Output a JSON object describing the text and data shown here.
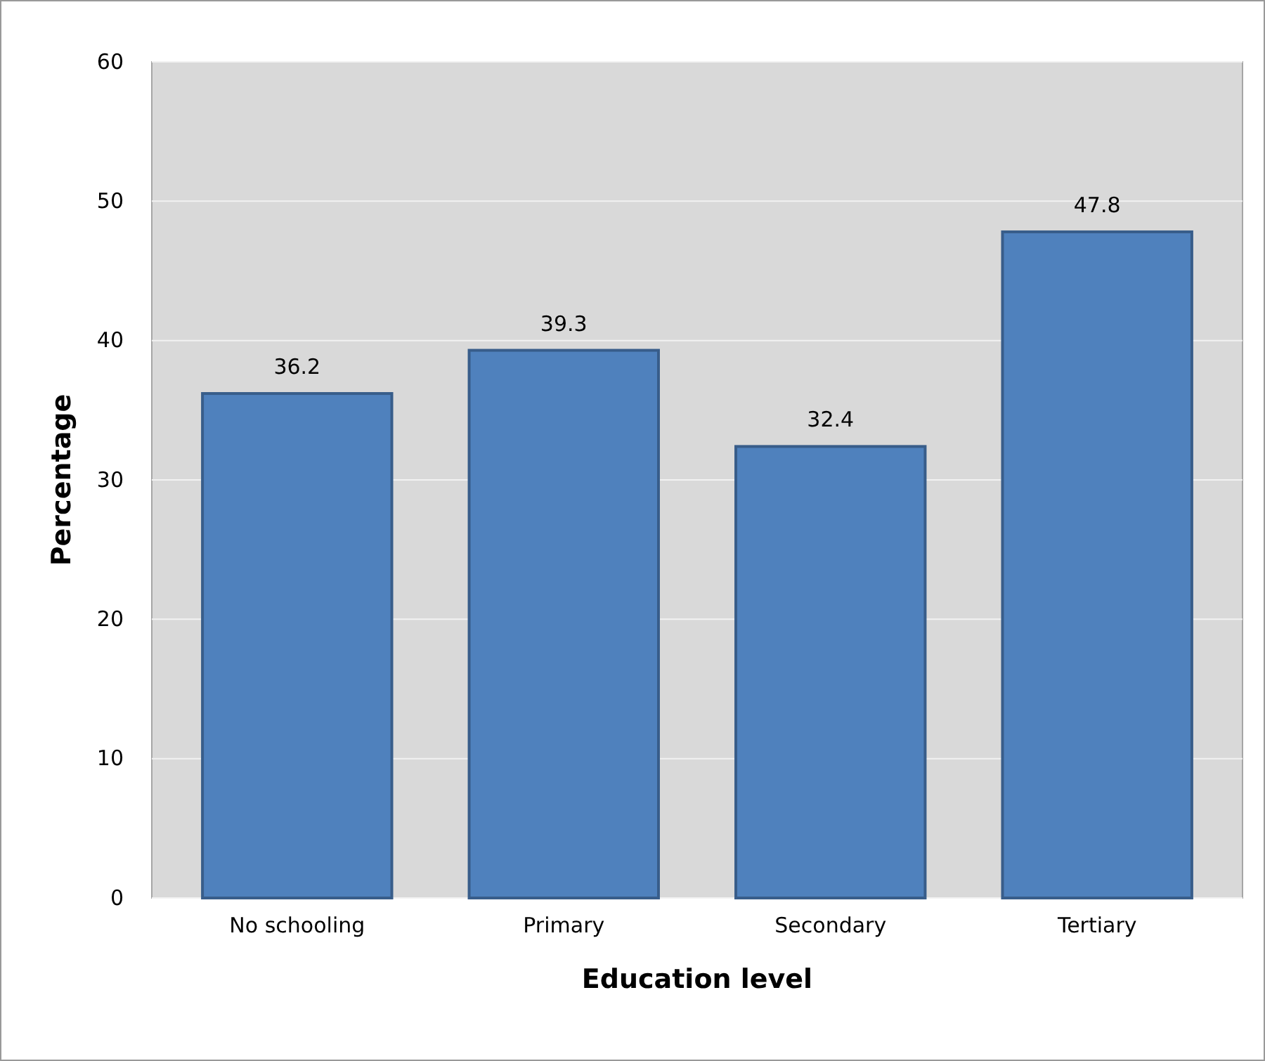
{
  "chart_data": {
    "type": "bar",
    "xlabel": "Education level",
    "ylabel": "Percentage",
    "categories": [
      "No schooling",
      "Primary",
      "Secondary",
      "Tertiary"
    ],
    "values": [
      36.2,
      39.3,
      32.4,
      47.8
    ],
    "color": "#4f81bd",
    "ylim": [
      0,
      60
    ],
    "yticks": [
      0,
      10,
      20,
      30,
      40,
      50,
      60
    ],
    "grid": "y",
    "data_labels": true
  }
}
